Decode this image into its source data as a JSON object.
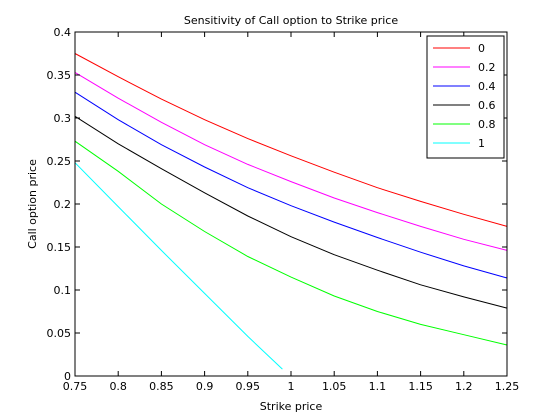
{
  "chart_data": {
    "type": "line",
    "title": "Sensitivity of Call option to Strike price",
    "xlabel": "Strike price",
    "ylabel": "Call option price",
    "xlim": [
      0.75,
      1.25
    ],
    "ylim": [
      0,
      0.4
    ],
    "xticks": [
      0.75,
      0.8,
      0.85,
      0.9,
      0.95,
      1,
      1.05,
      1.1,
      1.15,
      1.2,
      1.25
    ],
    "xtick_labels": [
      "0.75",
      "0.8",
      "0.85",
      "0.9",
      "0.95",
      "1",
      "1.05",
      "1.1",
      "1.15",
      "1.2",
      "1.25"
    ],
    "yticks": [
      0,
      0.05,
      0.1,
      0.15,
      0.2,
      0.25,
      0.3,
      0.35,
      0.4
    ],
    "ytick_labels": [
      "0",
      "0.05",
      "0.1",
      "0.15",
      "0.2",
      "0.25",
      "0.3",
      "0.35",
      "0.4"
    ],
    "grid": false,
    "legend_position": "top-right",
    "series": [
      {
        "name": "0",
        "color": "#ff0000",
        "x": [
          0.75,
          0.8,
          0.85,
          0.9,
          0.95,
          1.0,
          1.05,
          1.1,
          1.15,
          1.2,
          1.25
        ],
        "y": [
          0.375,
          0.348,
          0.322,
          0.298,
          0.276,
          0.256,
          0.237,
          0.219,
          0.203,
          0.188,
          0.174
        ]
      },
      {
        "name": "0.2",
        "color": "#ff00ff",
        "x": [
          0.75,
          0.8,
          0.85,
          0.9,
          0.95,
          1.0,
          1.05,
          1.1,
          1.15,
          1.2,
          1.25
        ],
        "y": [
          0.353,
          0.323,
          0.295,
          0.269,
          0.246,
          0.226,
          0.207,
          0.19,
          0.174,
          0.159,
          0.146
        ]
      },
      {
        "name": "0.4",
        "color": "#0000ff",
        "x": [
          0.75,
          0.8,
          0.85,
          0.9,
          0.95,
          1.0,
          1.05,
          1.1,
          1.15,
          1.2,
          1.25
        ],
        "y": [
          0.33,
          0.298,
          0.269,
          0.243,
          0.219,
          0.198,
          0.179,
          0.161,
          0.144,
          0.128,
          0.114
        ]
      },
      {
        "name": "0.6",
        "color": "#000000",
        "x": [
          0.75,
          0.8,
          0.85,
          0.9,
          0.95,
          1.0,
          1.05,
          1.1,
          1.15,
          1.2,
          1.25
        ],
        "y": [
          0.302,
          0.27,
          0.241,
          0.213,
          0.186,
          0.162,
          0.141,
          0.123,
          0.106,
          0.092,
          0.079
        ]
      },
      {
        "name": "0.8",
        "color": "#00ff00",
        "x": [
          0.75,
          0.8,
          0.85,
          0.9,
          0.95,
          1.0,
          1.05,
          1.1,
          1.15,
          1.2,
          1.25
        ],
        "y": [
          0.273,
          0.238,
          0.2,
          0.168,
          0.139,
          0.115,
          0.093,
          0.075,
          0.06,
          0.048,
          0.036
        ]
      },
      {
        "name": "1",
        "color": "#00ffff",
        "x": [
          0.75,
          0.8,
          0.85,
          0.9,
          0.95,
          0.99
        ],
        "y": [
          0.248,
          0.197,
          0.146,
          0.096,
          0.046,
          0.008
        ]
      }
    ]
  }
}
